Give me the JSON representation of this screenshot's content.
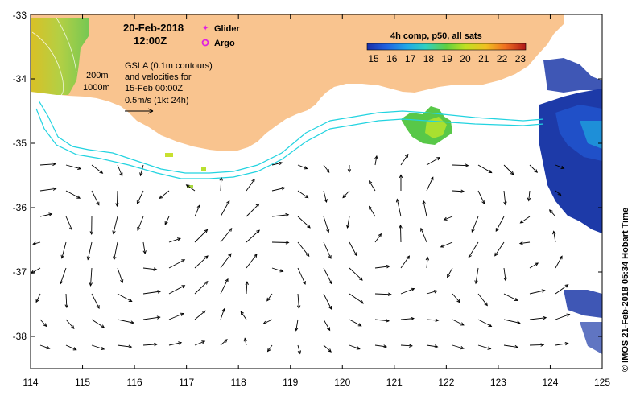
{
  "map": {
    "date": "20-Feb-2018",
    "time": "12:00Z",
    "legend": {
      "glider_label": "Glider",
      "argo_label": "Argo",
      "glider_color": "#e020e0",
      "argo_color": "#e020e0"
    },
    "gsla": {
      "line1": "GSLA (0.1m contours)",
      "line2": "and velocities for",
      "line3": "15-Feb 00:00Z",
      "line4": "0.5m/s (1kt 24h)"
    },
    "isobaths": {
      "shallow": "200m",
      "deep": "1000m",
      "color": "#22d3e0"
    },
    "colorbar": {
      "title": "4h comp, p50, all sats",
      "ticks": [
        "15",
        "16",
        "17",
        "18",
        "19",
        "20",
        "21",
        "22",
        "23"
      ]
    },
    "credit": "© IMOS 21-Feb-2018 05:34 Hobart Time",
    "x_ticks": [
      "114",
      "115",
      "116",
      "117",
      "118",
      "119",
      "120",
      "121",
      "122",
      "123",
      "124",
      "125"
    ],
    "y_ticks": [
      "-33",
      "-34",
      "-35",
      "-36",
      "-37",
      "-38"
    ],
    "colors": {
      "land": "#f9c48f",
      "arrow": "#000000"
    }
  }
}
